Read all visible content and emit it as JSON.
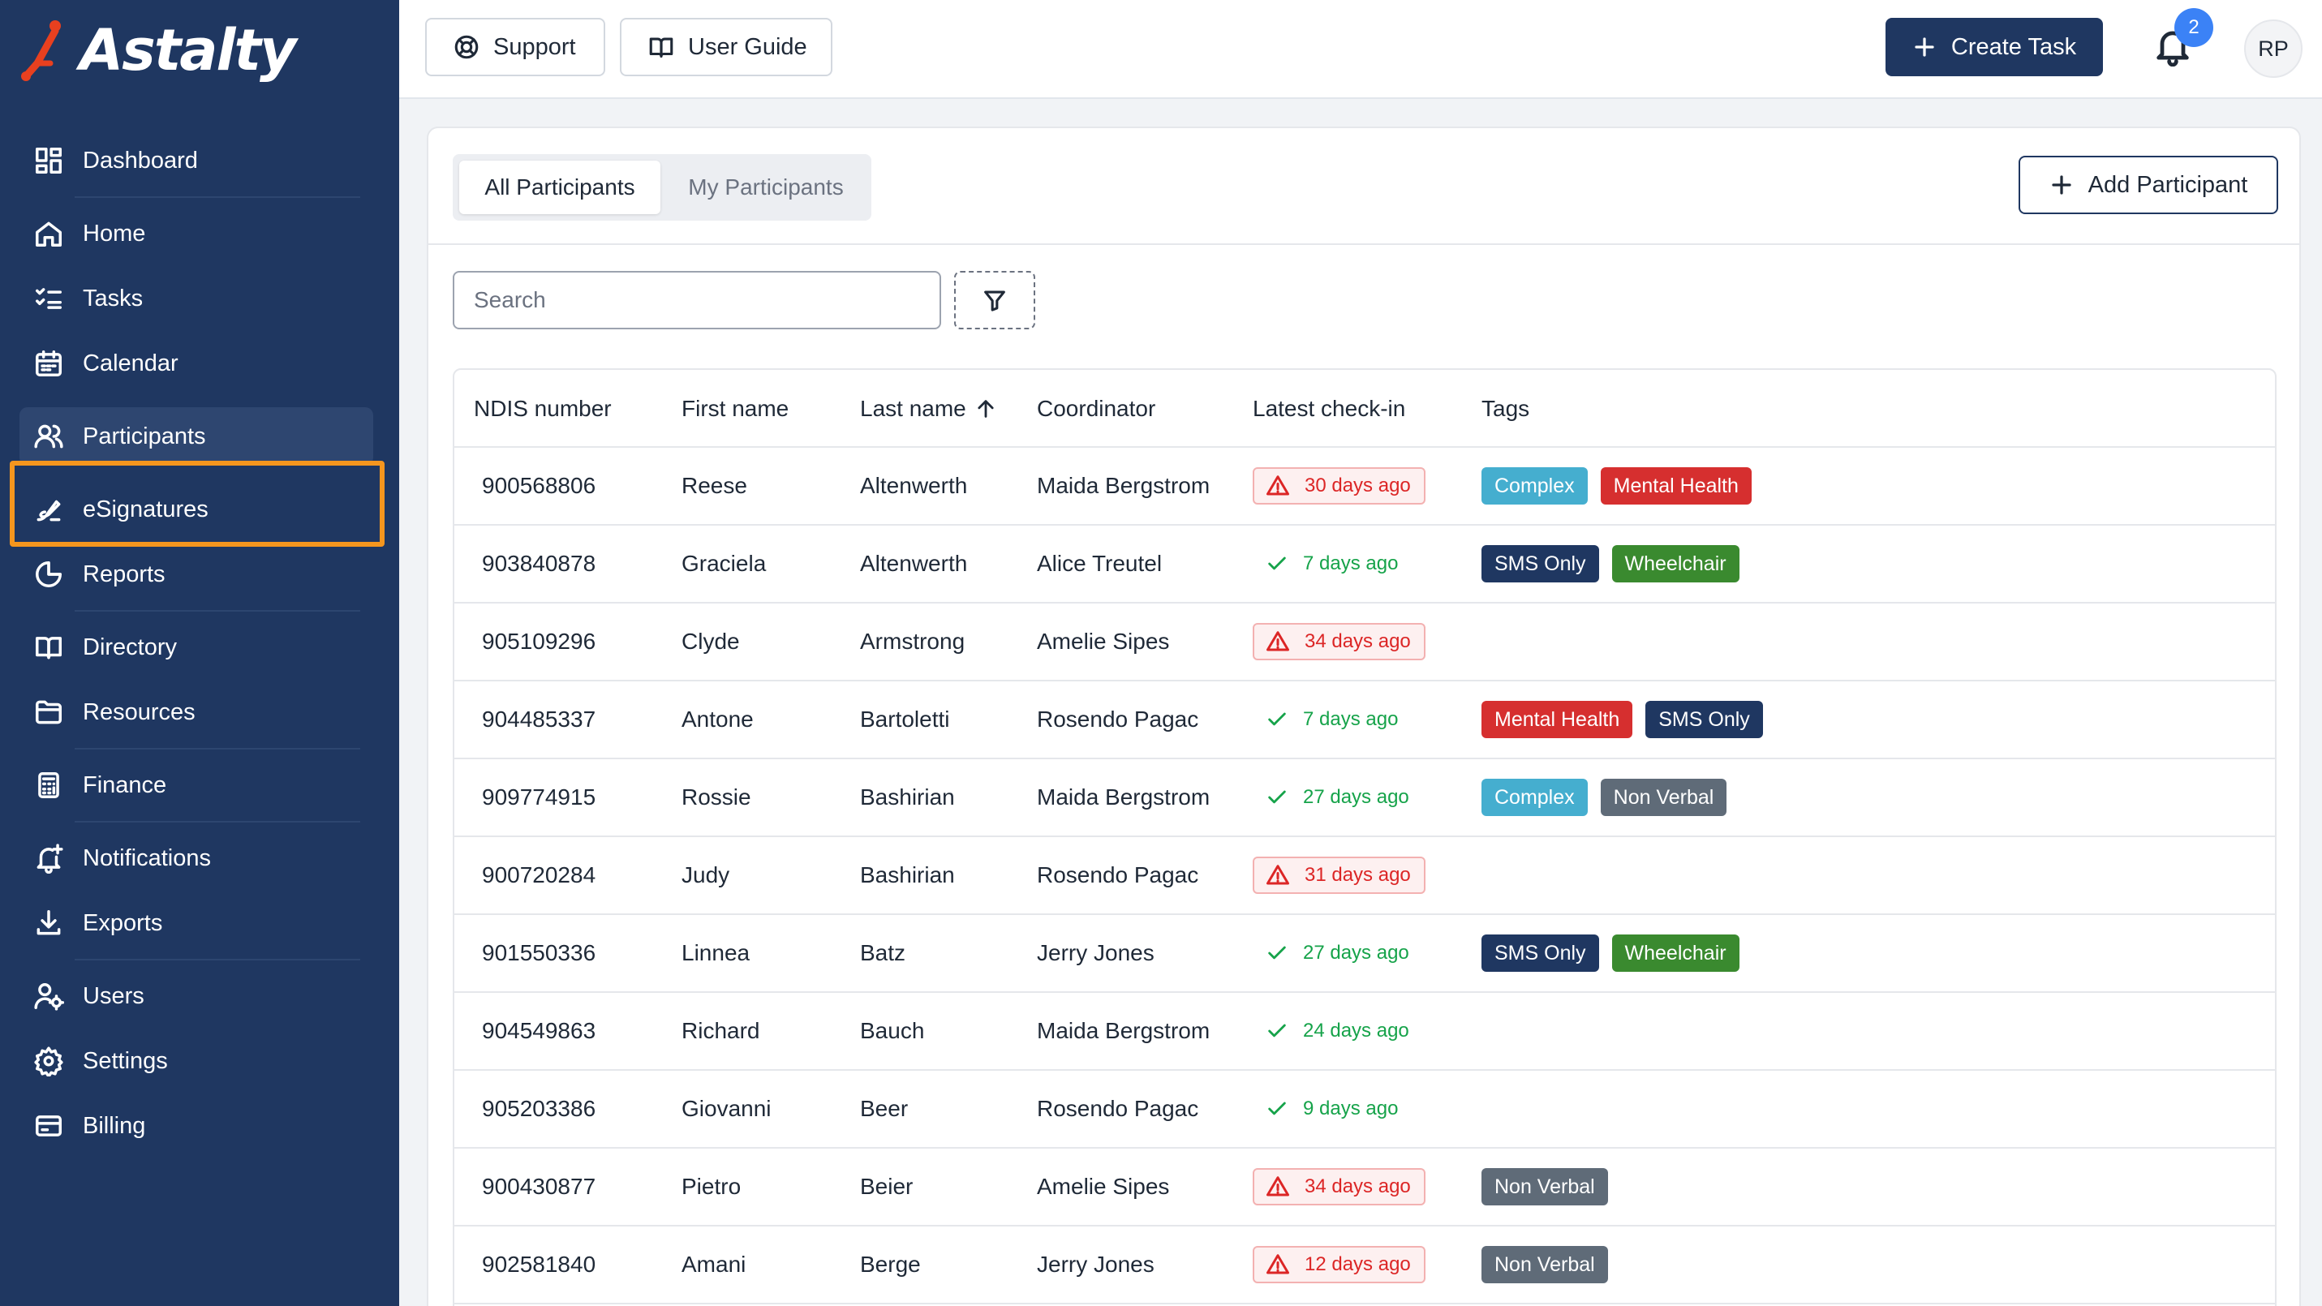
{
  "app": {
    "logo_text": "Astalty"
  },
  "sidebar": {
    "items": [
      {
        "label": "Dashboard",
        "icon": "dashboard-icon"
      },
      {
        "label": "Home",
        "icon": "home-icon"
      },
      {
        "label": "Tasks",
        "icon": "tasks-icon"
      },
      {
        "label": "Calendar",
        "icon": "calendar-icon"
      },
      {
        "label": "Participants",
        "icon": "participants-icon",
        "active": true
      },
      {
        "label": "eSignatures",
        "icon": "signature-icon",
        "highlighted": true
      },
      {
        "label": "Reports",
        "icon": "reports-icon"
      },
      {
        "label": "Directory",
        "icon": "book-icon"
      },
      {
        "label": "Resources",
        "icon": "folder-icon"
      },
      {
        "label": "Finance",
        "icon": "calculator-icon"
      },
      {
        "label": "Notifications",
        "icon": "bell-plus-icon"
      },
      {
        "label": "Exports",
        "icon": "download-icon"
      },
      {
        "label": "Users",
        "icon": "user-gear-icon"
      },
      {
        "label": "Settings",
        "icon": "gear-icon"
      },
      {
        "label": "Billing",
        "icon": "credit-card-icon"
      }
    ]
  },
  "topbar": {
    "support_label": "Support",
    "guide_label": "User Guide",
    "create_label": "Create Task",
    "notification_count": "2",
    "avatar_initials": "RP"
  },
  "main": {
    "tabs": [
      {
        "label": "All Participants",
        "active": true
      },
      {
        "label": "My Participants",
        "active": false
      }
    ],
    "add_label": "Add Participant",
    "search_placeholder": "Search"
  },
  "table": {
    "headers": [
      "NDIS number",
      "First name",
      "Last name",
      "Coordinator",
      "Latest check-in",
      "Tags"
    ],
    "sorted_column": "Last name",
    "sort_direction": "ascending",
    "rows": [
      {
        "ndis": "900568806",
        "first": "Reese",
        "last": "Altenwerth",
        "coordinator": "Maida Bergstrom",
        "checkin": "30 days ago",
        "status": "warn",
        "tags": [
          "Complex",
          "Mental Health"
        ]
      },
      {
        "ndis": "903840878",
        "first": "Graciela",
        "last": "Altenwerth",
        "coordinator": "Alice Treutel",
        "checkin": "7 days ago",
        "status": "ok",
        "tags": [
          "SMS Only",
          "Wheelchair"
        ]
      },
      {
        "ndis": "905109296",
        "first": "Clyde",
        "last": "Armstrong",
        "coordinator": "Amelie Sipes",
        "checkin": "34 days ago",
        "status": "warn",
        "tags": []
      },
      {
        "ndis": "904485337",
        "first": "Antone",
        "last": "Bartoletti",
        "coordinator": "Rosendo Pagac",
        "checkin": "7 days ago",
        "status": "ok",
        "tags": [
          "Mental Health",
          "SMS Only"
        ]
      },
      {
        "ndis": "909774915",
        "first": "Rossie",
        "last": "Bashirian",
        "coordinator": "Maida Bergstrom",
        "checkin": "27 days ago",
        "status": "ok",
        "tags": [
          "Complex",
          "Non Verbal"
        ]
      },
      {
        "ndis": "900720284",
        "first": "Judy",
        "last": "Bashirian",
        "coordinator": "Rosendo Pagac",
        "checkin": "31 days ago",
        "status": "warn",
        "tags": []
      },
      {
        "ndis": "901550336",
        "first": "Linnea",
        "last": "Batz",
        "coordinator": "Jerry Jones",
        "checkin": "27 days ago",
        "status": "ok",
        "tags": [
          "SMS Only",
          "Wheelchair"
        ]
      },
      {
        "ndis": "904549863",
        "first": "Richard",
        "last": "Bauch",
        "coordinator": "Maida Bergstrom",
        "checkin": "24 days ago",
        "status": "ok",
        "tags": []
      },
      {
        "ndis": "905203386",
        "first": "Giovanni",
        "last": "Beer",
        "coordinator": "Rosendo Pagac",
        "checkin": "9 days ago",
        "status": "ok",
        "tags": []
      },
      {
        "ndis": "900430877",
        "first": "Pietro",
        "last": "Beier",
        "coordinator": "Amelie Sipes",
        "checkin": "34 days ago",
        "status": "warn",
        "tags": [
          "Non Verbal"
        ]
      },
      {
        "ndis": "902581840",
        "first": "Amani",
        "last": "Berge",
        "coordinator": "Jerry Jones",
        "checkin": "12 days ago",
        "status": "warn",
        "tags": [
          "Non Verbal"
        ]
      }
    ]
  },
  "colors": {
    "sidebar_bg": "#1f3761",
    "highlight": "#f5961e",
    "brand_red": "#e8401f",
    "tag_colors": {
      "Complex": "#45aecf",
      "Mental Health": "#d62f2f",
      "SMS Only": "#1f3761",
      "Wheelchair": "#3a8a2f",
      "Non Verbal": "#5f6b78"
    }
  }
}
